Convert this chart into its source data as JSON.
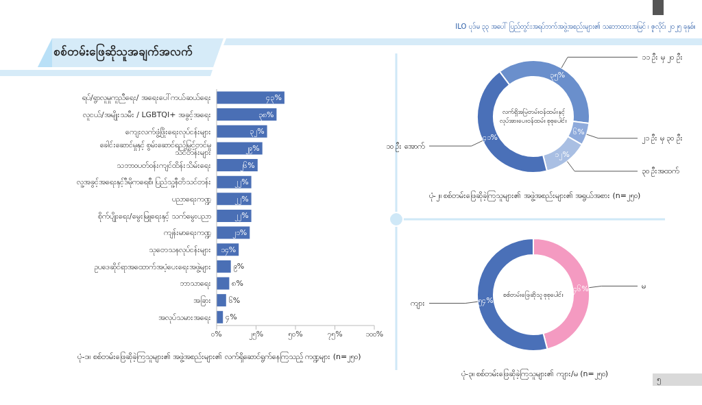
{
  "chart_data": [
    {
      "type": "bar",
      "orientation": "horizontal",
      "title": "ပုံ-၁။ စစ်တမ်းဖြေဆိုခဲ့ကြသူများ၏ အဖွဲ့အစည်းများ၏ လက်ရှိဆောင်ရွက်နေကြသည့် ကဏ္ဍများ (n=၂၅၀)",
      "categories": [
        "ရပ်/ရွာလူမှုကူညီရေး/ အရေးပေါ်ကယ်ဆယ်ရေး",
        "လူငယ်/အမျိုးသမီး / LGBTQI+ အခွင့်အရေး",
        "ကျေးလက်ဖွံ့ဖြိုးရေးလုပ်ငန်းများ",
        "ခေါင်းဆောင်မှုနှင့် စွမ်းဆောင်ရည်မြှင့်တင်မှု သင်တန်းများ",
        "သဘာဝပတ်ဝန်းကျင်ထိန်းသိမ်းရေး",
        "လူ့အခွင့်အရေးနှင့်ဒီမိုကရေစီ၊ ပြည်သူ့နီတိသင်တန်း",
        "ပညာရေးကဏ္ဍ",
        "စိုက်ပျိုးရေး/မွေးမြူရေးနှင့် သက်မွေးပညာ",
        "ကျန်းမာရေးကဏ္ဍ",
        "သုတေသနလုပ်ငန်းများ",
        "ဥပဒေဆိုင်ရာအထောက်အပံ့ပေးရေးအဖွဲ့များ",
        "ဘာသာရေး",
        "အခြား",
        "အလုပ်သမားအရေး"
      ],
      "values": [
        43,
        38,
        32,
        29,
        26,
        22,
        22,
        22,
        21,
        14,
        9,
        8,
        6,
        4
      ],
      "value_labels": [
        "၄၃%",
        "၃၈%",
        "၃၂%",
        "၂၉%",
        "၂၆%",
        "၂၂%",
        "၂၂%",
        "၂၂%",
        "၂၁%",
        "၁၄%",
        "၉%",
        "၈%",
        "၆%",
        "၄%"
      ],
      "color": "#4a6fb5",
      "xlim": [
        0,
        100
      ],
      "xticks": [
        {
          "value": 0,
          "label": "၀%"
        },
        {
          "value": 25,
          "label": "၂၅%"
        },
        {
          "value": 50,
          "label": "၅၀%"
        },
        {
          "value": 75,
          "label": "၇၅%"
        },
        {
          "value": 100,
          "label": "၁၀၀%"
        }
      ],
      "annotations": [
        "ILO ပုဒ်မ ၃၃ အပေါ် ပြည်တွင်းအရပ်ဘက်အဖွဲ့အစည်းများ၏ သဘောထားအမြင် ၊ ဇူလိုင်၊ ၂၀၂၅ ခုနှစ်။",
        "စစ်တမ်းဖြေဆိုသူအချက်အလက်",
        "၅"
      ]
    },
    {
      "type": "donut",
      "title": "ပုံ-၂။ စစ်တမ်းဖြေဆိုခဲ့ကြသူများ၏ အဖွဲ့အစည်းများ၏ အရွယ်အစား (n=၂၅၀)",
      "categories": [
        "၁၁ ဦး မှ ၂၀ ဦး",
        "၂၁ ဦး မှ ၃၀ ဦး",
        "၃၀ ဦးအထက်",
        "၁၀ ဦး အောက်"
      ],
      "values": [
        35,
        6,
        12,
        41
      ],
      "value_labels": [
        "၃၅%",
        "၆%",
        "၁၂%",
        "၄၁%"
      ],
      "colors": [
        "#6a8fcc",
        "#8eaadb",
        "#a9bfe3",
        "#4a70b8"
      ],
      "annotations": [
        "လက်ရှိအမြဲတမ်းဝန်ထမ်းနှင့် လုပ်အားပေးဝန်ထမ်း စုစုပေါင်း"
      ]
    },
    {
      "type": "donut",
      "title": "ပုံ-၃။ စစ်တမ်းဖြေဆိုခဲ့ကြသူများ၏ ကျား/မ (n=၂၅၀)",
      "categories": [
        "မ",
        "ကျား"
      ],
      "values": [
        46,
        54
      ],
      "value_labels": [
        "၄၆%",
        "၅၄%"
      ],
      "colors": [
        "#f49ac1",
        "#4a70b8"
      ],
      "annotations": [
        "စစ်တမ်းဖြေဆိုသူ စုစုပေါင်း"
      ]
    }
  ]
}
